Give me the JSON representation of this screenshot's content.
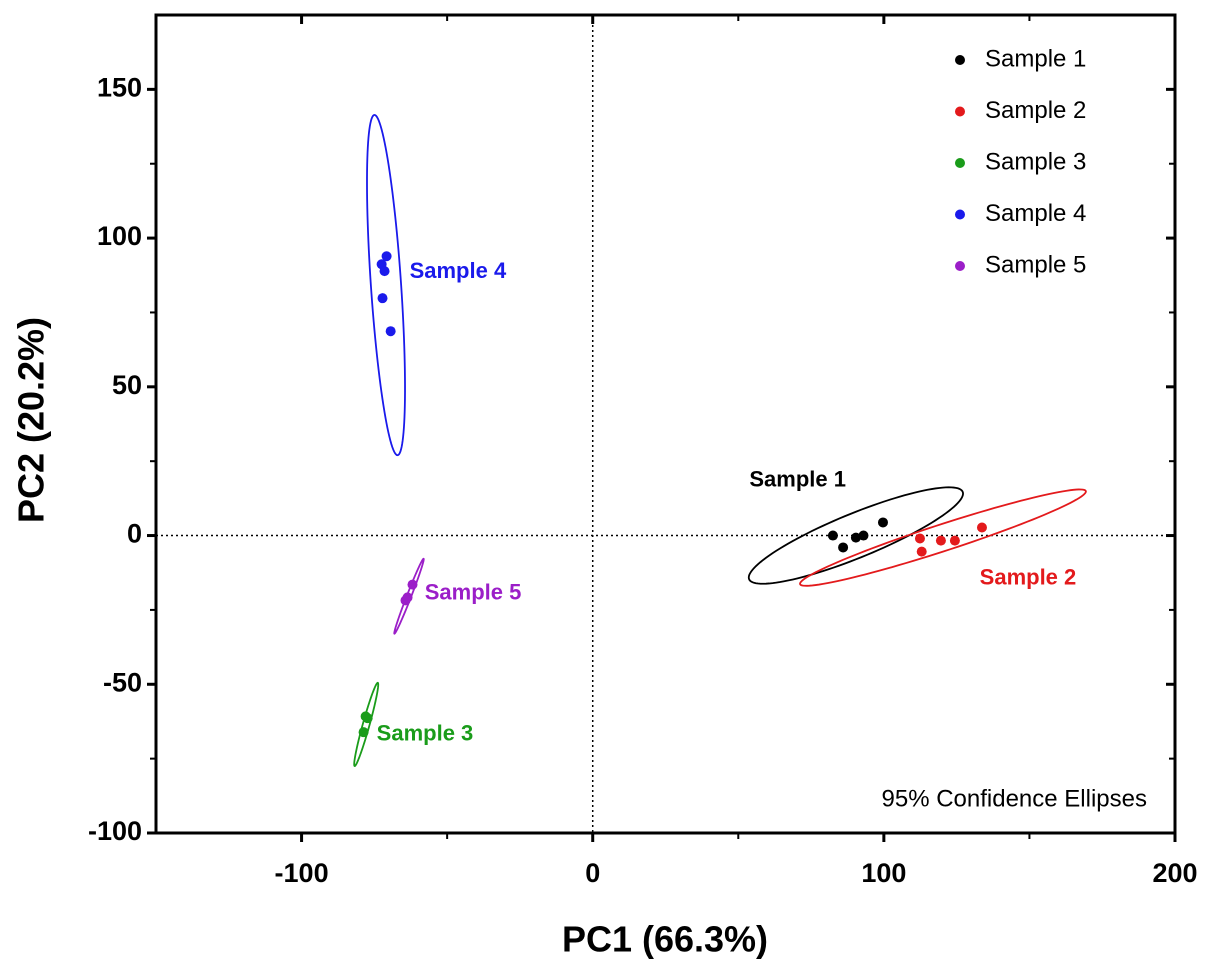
{
  "chart_data": {
    "type": "scatter",
    "x_label": "PC1 (66.3%)",
    "y_label": "PC2 (20.2%)",
    "note": "95% Confidence Ellipses",
    "xlim": [
      -150,
      200
    ],
    "ylim": [
      -100,
      175
    ],
    "xticks": [
      -100,
      0,
      100,
      200
    ],
    "yticks": [
      -100,
      -50,
      0,
      50,
      100,
      150
    ],
    "zero_lines": true,
    "legend": "upper right",
    "series": [
      {
        "name": "Sample 1",
        "color": "#000000",
        "x": [
          82.5,
          86,
          90.4,
          93,
          99.7
        ],
        "y": [
          0,
          -4,
          -0.7,
          0,
          4.4
        ],
        "ellipse": {
          "center": [
            90.4,
            0
          ],
          "major": [
            36.8,
            14.1
          ],
          "minor": [
            0,
            8
          ]
        }
      },
      {
        "name": "Sample 2",
        "color": "#e31a1c",
        "x": [
          112.4,
          113,
          119.6,
          124.4,
          133.7
        ],
        "y": [
          -1,
          -5.4,
          -1.7,
          -1.7,
          2.7
        ],
        "ellipse": {
          "center": [
            120.3,
            -0.7
          ],
          "major": [
            49.1,
            15.5
          ],
          "minor": [
            0,
            4.7
          ]
        }
      },
      {
        "name": "Sample 3",
        "color": "#1a9c1a",
        "x": [
          -77.3,
          -78.7,
          -78
        ],
        "y": [
          -61.4,
          -66.1,
          -60.8
        ],
        "ellipse": {
          "center": [
            -77.8,
            -63.5
          ],
          "major": [
            3.95,
            14
          ],
          "minor": [
            1.2,
            0
          ]
        }
      },
      {
        "name": "Sample 4",
        "color": "#1a1aeb",
        "x": [
          -70.8,
          -72.5,
          -71.5,
          -72.2,
          -69.4
        ],
        "y": [
          93.9,
          91.2,
          88.9,
          79.8,
          68.7
        ],
        "ellipse": {
          "center": [
            -71,
            84.2
          ],
          "major": [
            -3.95,
            57.2
          ],
          "minor": [
            5.2,
            0
          ]
        }
      },
      {
        "name": "Sample 5",
        "color": "#9b1ec8",
        "x": [
          -61.9,
          -63.6,
          -64.3
        ],
        "y": [
          -16.5,
          -20.8,
          -21.8
        ],
        "ellipse": {
          "center": [
            -63.1,
            -20.4
          ],
          "major": [
            5,
            12.6
          ],
          "minor": [
            0.8,
            0
          ]
        }
      }
    ],
    "annotations": [
      {
        "text": "Sample 1",
        "x": 70.4,
        "y": 18.5,
        "color": "#000000",
        "anchor": "middle"
      },
      {
        "text": "Sample 2",
        "x": 149.5,
        "y": -14.5,
        "color": "#e31a1c",
        "anchor": "middle"
      },
      {
        "text": "Sample 3",
        "x": -74.2,
        "y": -67,
        "color": "#1a9c1a",
        "anchor": "start"
      },
      {
        "text": "Sample 4",
        "x": -62.9,
        "y": 88.6,
        "color": "#1a1aeb",
        "anchor": "start"
      },
      {
        "text": "Sample 5",
        "x": -57.7,
        "y": -19.5,
        "color": "#9b1ec8",
        "anchor": "start"
      }
    ]
  }
}
